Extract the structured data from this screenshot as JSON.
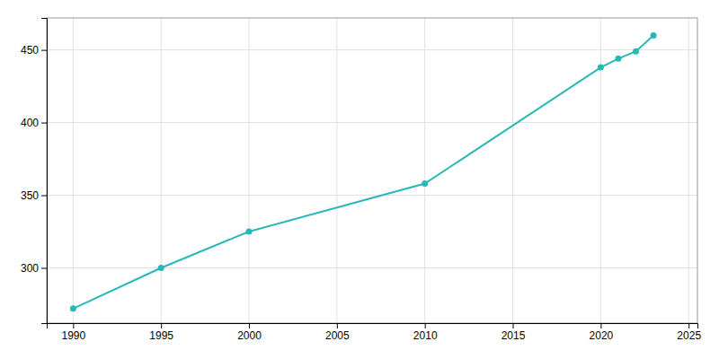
{
  "chart_data": {
    "type": "line",
    "x": [
      1990,
      1995,
      2000,
      2010,
      2020,
      2021,
      2022,
      2023
    ],
    "values": [
      272,
      300,
      325,
      358,
      438,
      444,
      449,
      460
    ],
    "color": "#29b8b8",
    "marker": "circle",
    "xlim": [
      1988.5,
      2025.5
    ],
    "ylim": [
      262,
      472
    ],
    "xticks": [
      1990,
      1995,
      2000,
      2005,
      2010,
      2015,
      2020,
      2025
    ],
    "yticks": [
      300,
      350,
      400,
      450
    ],
    "grid": true
  }
}
